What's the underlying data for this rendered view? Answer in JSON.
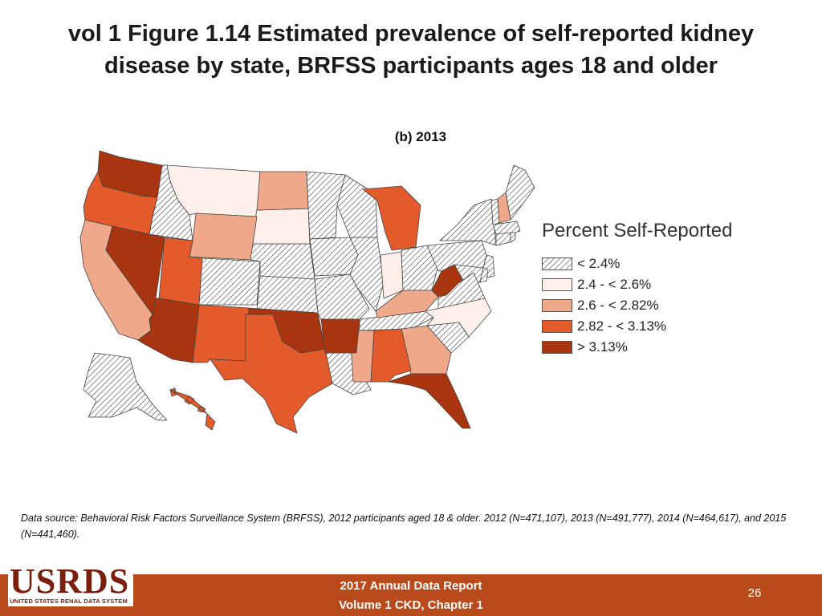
{
  "header": {
    "title": "vol 1 Figure 1.14 Estimated prevalence of self-reported kidney disease by state, BRFSS participants ages 18 and older",
    "subtitle": "(b) 2013"
  },
  "legend": {
    "title": "Percent Self-Reported",
    "items": [
      {
        "label": "< 2.4%",
        "fill": "hatch",
        "color": "#ffffff"
      },
      {
        "label": "2.4 - < 2.6%",
        "fill": "solid",
        "color": "#fdf0ea"
      },
      {
        "label": "2.6 - < 2.82%",
        "fill": "solid",
        "color": "#f0a88a"
      },
      {
        "label": "2.82 - < 3.13%",
        "fill": "solid",
        "color": "#e35b2b"
      },
      {
        "label": "> 3.13%",
        "fill": "solid",
        "color": "#a8350f"
      }
    ]
  },
  "map_data": {
    "classes": [
      {
        "name": "< 2.4%",
        "states": [
          "ID",
          "CO",
          "NE",
          "KS",
          "MN",
          "IA",
          "MO",
          "WI",
          "IL",
          "OH",
          "PA",
          "NY",
          "VT",
          "ME",
          "MA",
          "CT",
          "RI",
          "NJ",
          "DE",
          "MD",
          "VA",
          "SC",
          "TN",
          "LA",
          "AK"
        ]
      },
      {
        "name": "2.4 - < 2.6%",
        "states": [
          "MT",
          "SD",
          "IN",
          "NC"
        ]
      },
      {
        "name": "2.6 - < 2.82%",
        "states": [
          "CA",
          "WY",
          "ND",
          "KY",
          "MS",
          "GA",
          "NH"
        ]
      },
      {
        "name": "2.82 - < 3.13%",
        "states": [
          "OR",
          "UT",
          "NM",
          "TX",
          "MI",
          "AL",
          "HI"
        ]
      },
      {
        "name": "> 3.13%",
        "states": [
          "WA",
          "NV",
          "AZ",
          "OK",
          "AR",
          "WV",
          "FL"
        ]
      }
    ]
  },
  "note": "Data source: Behavioral Risk Factors Surveillance System (BRFSS), 2012 participants aged 18 & older. 2012 (N=471,107), 2013 (N=491,777), 2014 (N=464,617), and 2015 (N=441,460).",
  "footer": {
    "logo": "USRDS",
    "logo_sub": "UNITED STATES RENAL DATA SYSTEM",
    "line1": "2017 Annual Data Report",
    "line2": "Volume 1 CKD, Chapter 1",
    "page": "26"
  }
}
